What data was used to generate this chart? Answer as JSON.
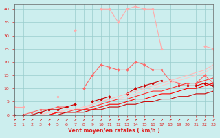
{
  "x": [
    0,
    1,
    2,
    3,
    4,
    5,
    6,
    7,
    8,
    9,
    10,
    11,
    12,
    13,
    14,
    15,
    16,
    17,
    18,
    19,
    20,
    21,
    22,
    23
  ],
  "series": [
    {
      "name": "light_pink_upper",
      "color": "#ffaaaa",
      "linewidth": 0.8,
      "marker": "D",
      "markersize": 2.0,
      "values": [
        3,
        3,
        null,
        null,
        null,
        7,
        null,
        32,
        null,
        null,
        40,
        40,
        35,
        40,
        41,
        40,
        40,
        25,
        null,
        null,
        null,
        null,
        26,
        25
      ]
    },
    {
      "name": "medium_pink_with_markers",
      "color": "#ff6666",
      "linewidth": 0.8,
      "marker": "D",
      "markersize": 2.0,
      "values": [
        0,
        0,
        1,
        2,
        2,
        3,
        3,
        null,
        10,
        15,
        19,
        18,
        17,
        17,
        20,
        19,
        17,
        17,
        13,
        12,
        12,
        12,
        15,
        12
      ]
    },
    {
      "name": "dark_red_markers",
      "color": "#cc0000",
      "linewidth": 0.8,
      "marker": "D",
      "markersize": 2.0,
      "values": [
        0,
        0,
        0,
        1,
        2,
        2,
        3,
        4,
        null,
        5,
        6,
        7,
        null,
        8,
        10,
        11,
        12,
        13,
        null,
        11,
        11,
        11,
        12,
        11
      ]
    },
    {
      "name": "light_straight1",
      "color": "#ffbbbb",
      "linewidth": 0.8,
      "marker": null,
      "markersize": 0,
      "values": [
        0,
        0,
        0,
        0,
        1,
        1,
        2,
        2,
        3,
        4,
        5,
        6,
        7,
        8,
        9,
        10,
        11,
        12,
        13,
        14,
        15,
        16,
        17,
        19
      ]
    },
    {
      "name": "light_straight2",
      "color": "#ffcccc",
      "linewidth": 0.8,
      "marker": null,
      "markersize": 0,
      "values": [
        0,
        0,
        0,
        0,
        1,
        1,
        2,
        2,
        3,
        3,
        4,
        5,
        6,
        7,
        8,
        9,
        10,
        11,
        12,
        13,
        14,
        15,
        16,
        18
      ]
    },
    {
      "name": "red_straight1",
      "color": "#ff3333",
      "linewidth": 0.8,
      "marker": null,
      "markersize": 0,
      "values": [
        0,
        0,
        0,
        0,
        0,
        1,
        1,
        2,
        2,
        3,
        4,
        5,
        6,
        6,
        7,
        8,
        9,
        9,
        10,
        11,
        12,
        12,
        13,
        14
      ]
    },
    {
      "name": "red_straight2",
      "color": "#ff0000",
      "linewidth": 0.8,
      "marker": null,
      "markersize": 0,
      "values": [
        0,
        0,
        0,
        0,
        0,
        1,
        1,
        1,
        2,
        2,
        3,
        4,
        4,
        5,
        6,
        6,
        7,
        8,
        8,
        9,
        10,
        10,
        11,
        12
      ]
    },
    {
      "name": "dark_red_straight",
      "color": "#cc0000",
      "linewidth": 0.8,
      "marker": null,
      "markersize": 0,
      "values": [
        0,
        0,
        0,
        0,
        0,
        0,
        1,
        1,
        1,
        2,
        2,
        3,
        3,
        4,
        4,
        5,
        5,
        6,
        6,
        7,
        7,
        8,
        8,
        9
      ]
    }
  ],
  "xlabel": "Vent moyen/en rafales ( km/h )",
  "xlim": [
    0,
    23
  ],
  "ylim": [
    0,
    42
  ],
  "yticks": [
    0,
    5,
    10,
    15,
    20,
    25,
    30,
    35,
    40
  ],
  "xticks": [
    0,
    1,
    2,
    3,
    4,
    5,
    6,
    7,
    8,
    9,
    10,
    11,
    12,
    13,
    14,
    15,
    16,
    17,
    18,
    19,
    20,
    21,
    22,
    23
  ],
  "background_color": "#cceeee",
  "grid_color": "#99cccc",
  "tick_color": "#dd2222",
  "label_color": "#dd2222",
  "arrow_color": "#cc3333"
}
